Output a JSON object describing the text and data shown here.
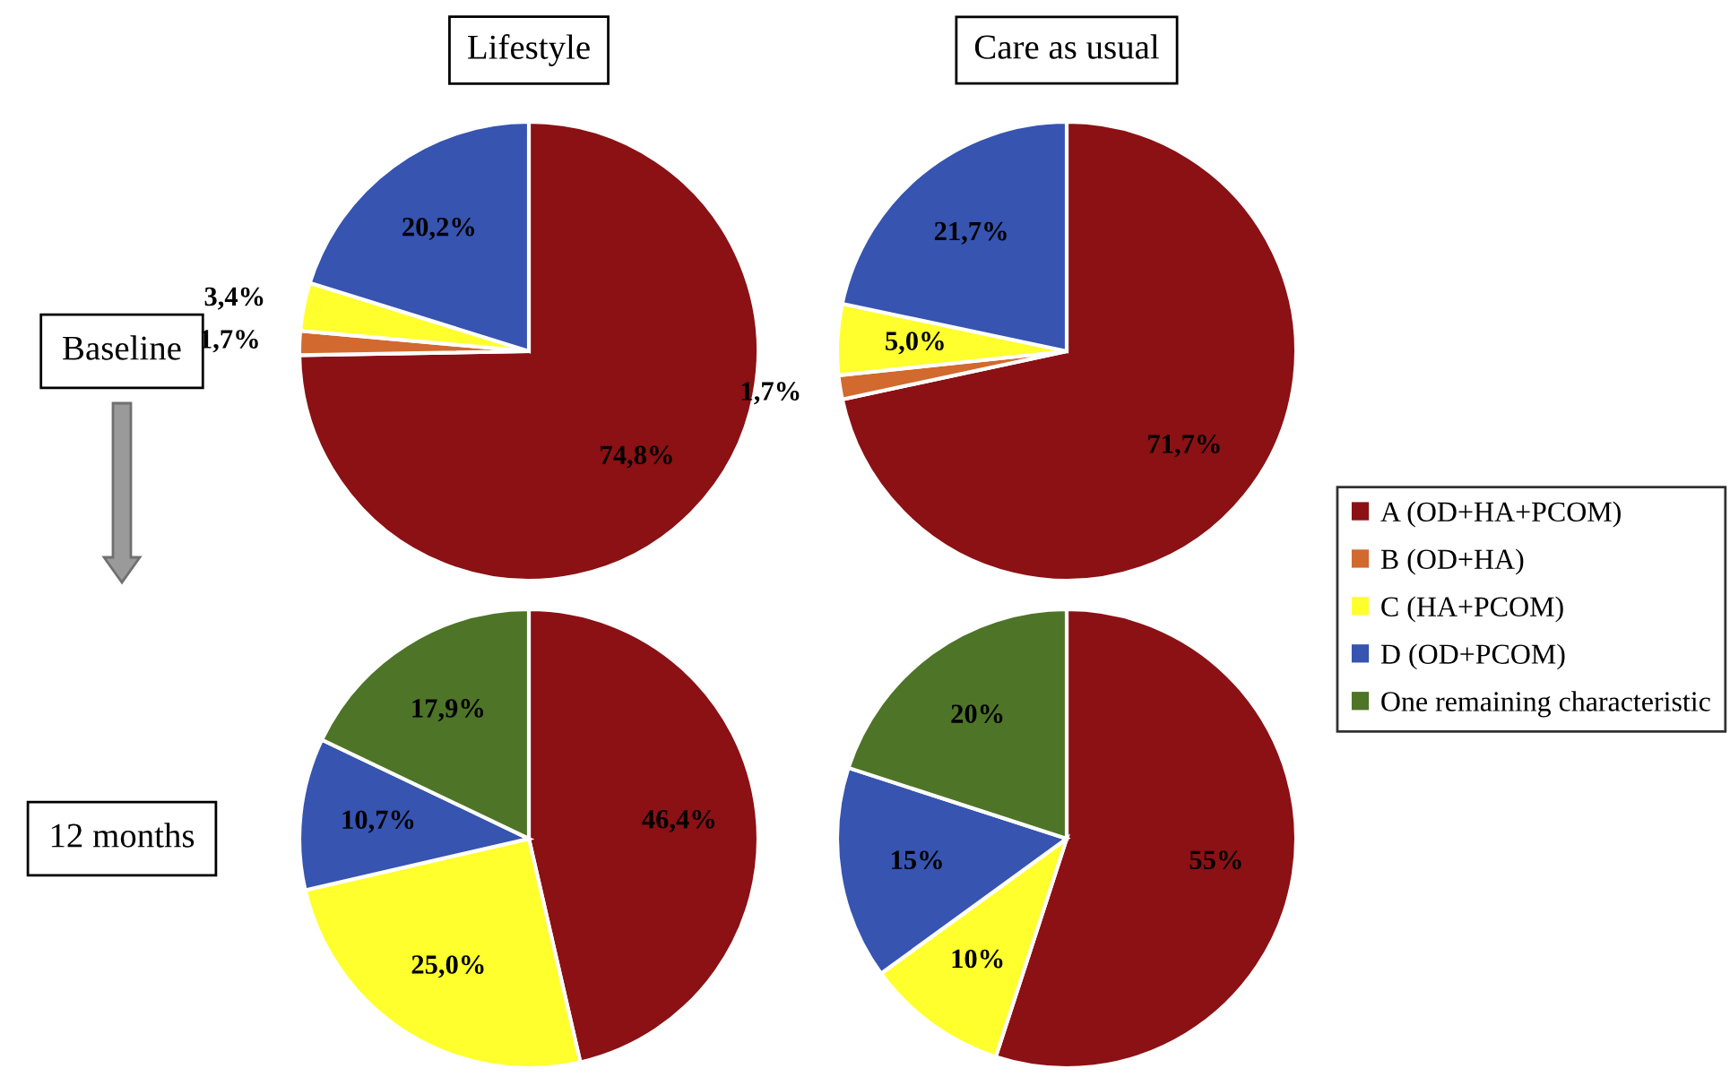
{
  "chart_data": [
    {
      "type": "pie",
      "title": "Lifestyle",
      "annotations": [
        "Baseline"
      ],
      "legend": "right",
      "categories": [
        "A (OD+HA+PCOM)",
        "B (OD+HA)",
        "C (HA+PCOM)",
        "D (OD+PCOM)",
        "One remaining characteristic"
      ],
      "values": [
        74.8,
        1.7,
        3.4,
        20.2,
        null
      ],
      "value_labels": [
        "74,8%",
        "1,7%",
        "3,4%",
        "20,2%",
        null
      ],
      "colors": [
        "#8b1114",
        "#d2692e",
        "#ffff2e",
        "#3654b0",
        "#4e7428"
      ]
    },
    {
      "type": "pie",
      "title": "Care as usual",
      "categories": [
        null,
        null,
        null,
        null,
        null
      ],
      "values": [
        71.7,
        1.7,
        5.0,
        21.7,
        null
      ],
      "value_labels": [
        "71,7%",
        "1,7%",
        "5,0%",
        "21,7%",
        null
      ],
      "colors": [
        "#8b1114",
        "#d2692e",
        "#ffff2e",
        "#3654b0",
        "#4e7428"
      ]
    },
    {
      "type": "pie",
      "annotations": [
        "12 months"
      ],
      "categories": [
        null,
        null,
        null,
        null,
        null
      ],
      "values": [
        46.4,
        null,
        25.0,
        10.7,
        17.9
      ],
      "value_labels": [
        "46,4%",
        null,
        "25,0%",
        "10,7%",
        "17,9%"
      ],
      "colors": [
        "#8b1114",
        "#d2692e",
        "#ffff2e",
        "#3654b0",
        "#4e7428"
      ]
    },
    {
      "type": "pie",
      "categories": [
        null,
        null,
        null,
        null,
        null
      ],
      "values": [
        55,
        null,
        10,
        15,
        20
      ],
      "value_labels": [
        "55%",
        null,
        "10%",
        "15%",
        "20%"
      ],
      "colors": [
        "#8b1114",
        "#d2692e",
        "#ffff2e",
        "#3654b0",
        "#4e7428"
      ]
    }
  ]
}
